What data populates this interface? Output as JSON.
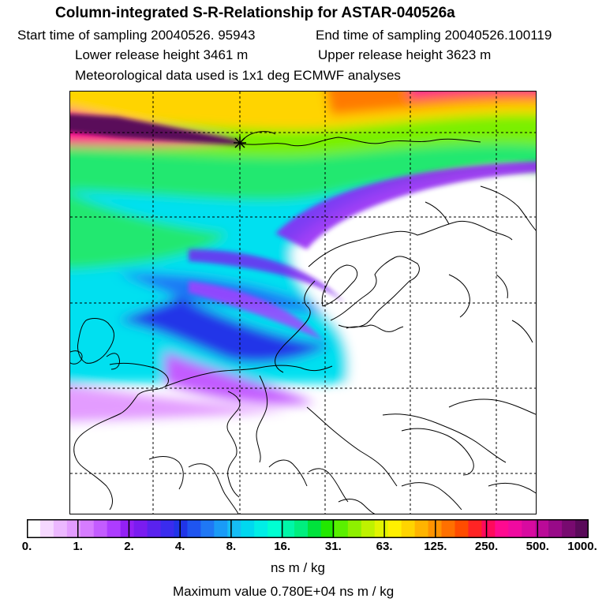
{
  "header": {
    "title": "Column-integrated S-R-Relationship for ASTAR-040526a",
    "start_time": "Start time of sampling 20040526. 95943",
    "end_time": "End time of sampling 20040526.100119",
    "lower_release": "Lower release height 3461 m",
    "upper_release": "Upper release height 3623 m",
    "met_data": "Meteorological data used is 1x1 deg ECMWF analyses"
  },
  "colorbar": {
    "tick_labels": [
      "0.",
      "1.",
      "2.",
      "4.",
      "8.",
      "16.",
      "31.",
      "63.",
      "125.",
      "250.",
      "500.",
      "1000."
    ],
    "colors": [
      "#ffffff",
      "#f6d8ff",
      "#ecb8ff",
      "#e39cff",
      "#d67cff",
      "#c35cff",
      "#ad3cff",
      "#9320f5",
      "#7a1cf0",
      "#5a22ee",
      "#3a2cee",
      "#2035e8",
      "#1f55f0",
      "#1f78f5",
      "#1a9bf7",
      "#16bdf5",
      "#00d8ef",
      "#00eee6",
      "#00ffd2",
      "#00f6a8",
      "#00ee7e",
      "#00e23c",
      "#22e800",
      "#5af000",
      "#8ef000",
      "#bef200",
      "#e2f400",
      "#fff000",
      "#ffd400",
      "#ffb400",
      "#ff9300",
      "#ff7000",
      "#ff4c00",
      "#ff2424",
      "#ff0a5c",
      "#ff0a90",
      "#f00aa0",
      "#d80aa0",
      "#bb0a98",
      "#980a88",
      "#780a70",
      "#5a0a5a"
    ]
  },
  "unit": "ns m / kg",
  "max_value": "Maximum value  0.780E+04 ns m / kg"
}
